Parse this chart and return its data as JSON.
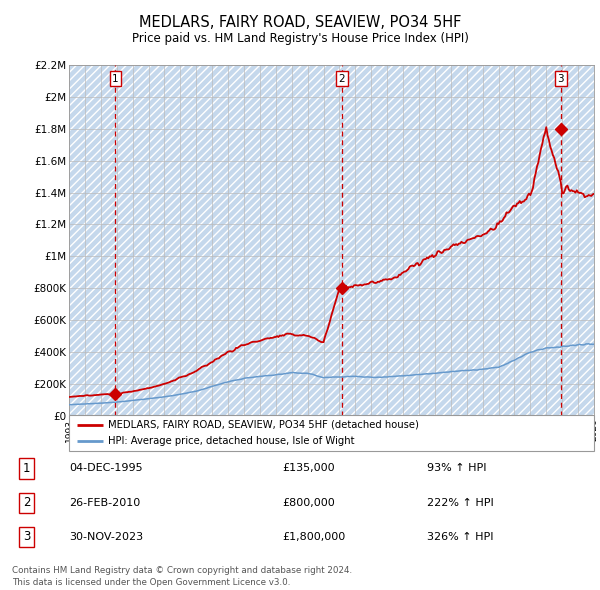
{
  "title": "MEDLARS, FAIRY ROAD, SEAVIEW, PO34 5HF",
  "subtitle": "Price paid vs. HM Land Registry's House Price Index (HPI)",
  "ylabel_ticks": [
    "£0",
    "£200K",
    "£400K",
    "£600K",
    "£800K",
    "£1M",
    "£1.2M",
    "£1.4M",
    "£1.6M",
    "£1.8M",
    "£2M",
    "£2.2M"
  ],
  "ylabel_values": [
    0,
    200000,
    400000,
    600000,
    800000,
    1000000,
    1200000,
    1400000,
    1600000,
    1800000,
    2000000,
    2200000
  ],
  "xmin": 1993,
  "xmax": 2026,
  "ymin": 0,
  "ymax": 2200000,
  "sale_color": "#cc0000",
  "hpi_color": "#6699cc",
  "bg_color": "#dce8f5",
  "hatch_color": "#c5d8ec",
  "grid_color": "#bbbbbb",
  "transactions": [
    {
      "date_num": 1995.92,
      "price": 135000,
      "label": "1"
    },
    {
      "date_num": 2010.15,
      "price": 800000,
      "label": "2"
    },
    {
      "date_num": 2023.92,
      "price": 1800000,
      "label": "3"
    }
  ],
  "legend_line1": "MEDLARS, FAIRY ROAD, SEAVIEW, PO34 5HF (detached house)",
  "legend_line2": "HPI: Average price, detached house, Isle of Wight",
  "table_rows": [
    {
      "num": "1",
      "date": "04-DEC-1995",
      "price": "£135,000",
      "change": "93% ↑ HPI"
    },
    {
      "num": "2",
      "date": "26-FEB-2010",
      "price": "£800,000",
      "change": "222% ↑ HPI"
    },
    {
      "num": "3",
      "date": "30-NOV-2023",
      "price": "£1,800,000",
      "change": "326% ↑ HPI"
    }
  ],
  "footnote": "Contains HM Land Registry data © Crown copyright and database right 2024.\nThis data is licensed under the Open Government Licence v3.0.",
  "dashed_vline_color": "#cc0000"
}
